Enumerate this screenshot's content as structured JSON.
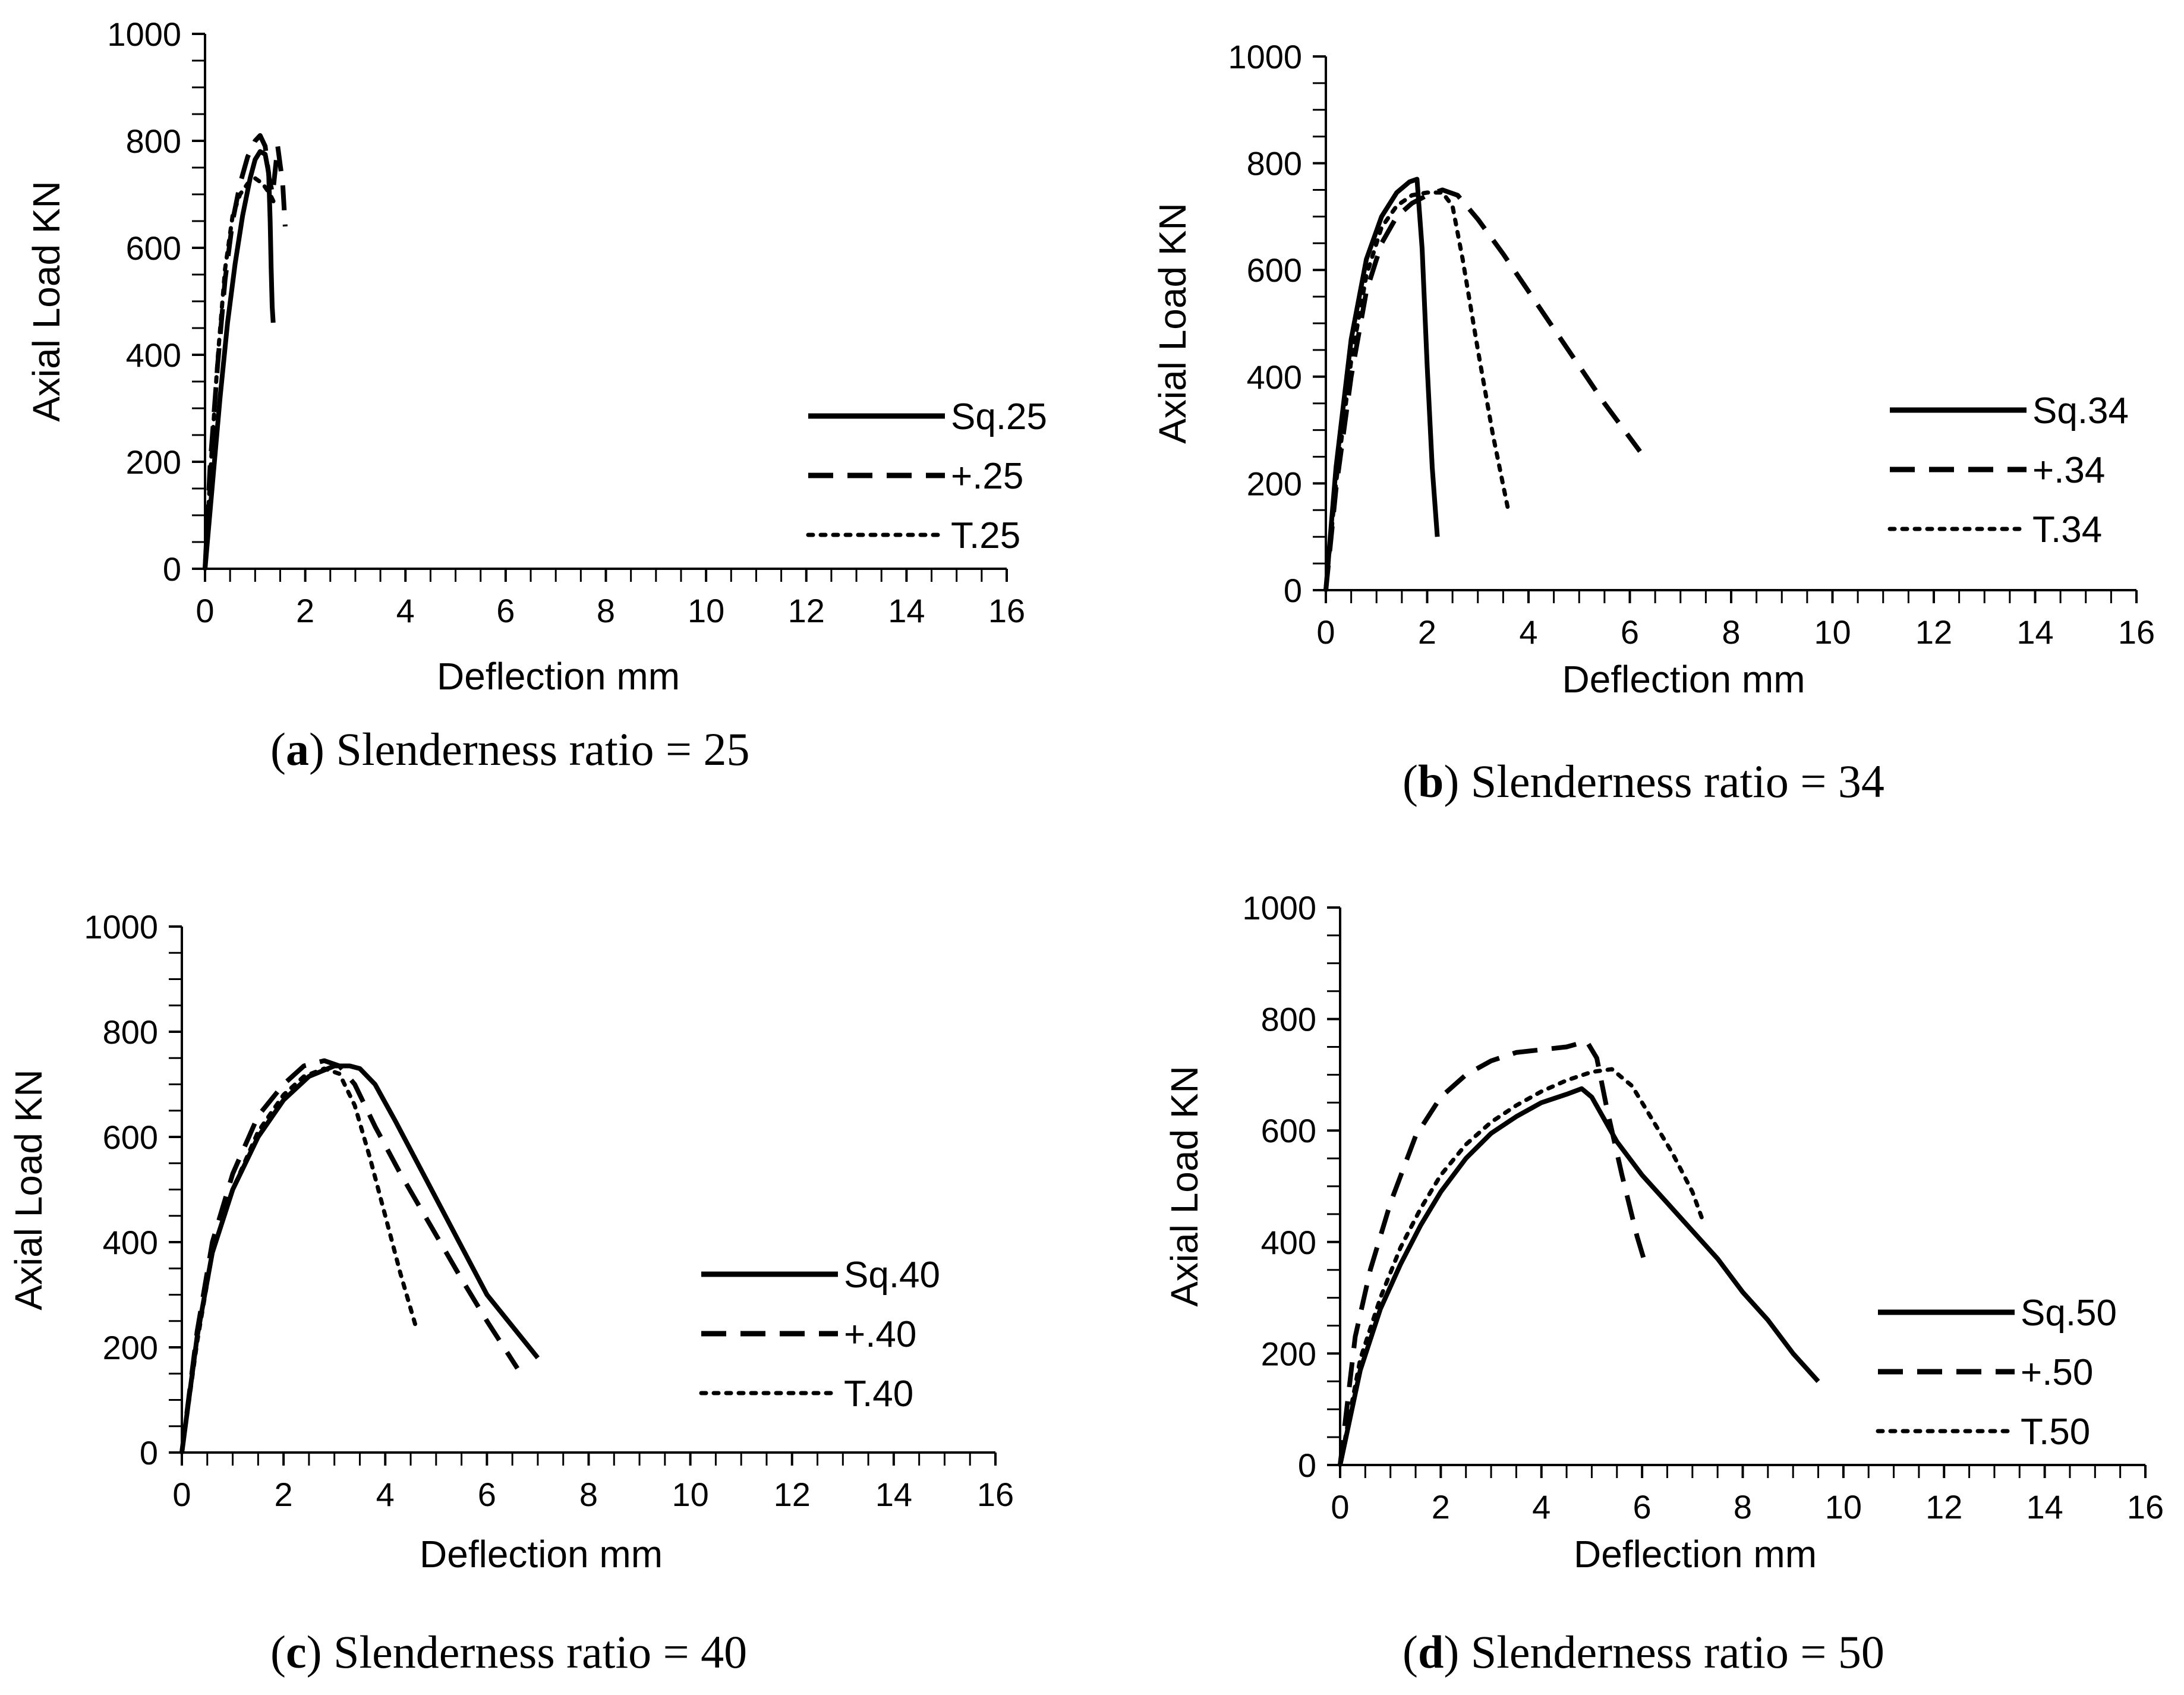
{
  "figure": {
    "colors": {
      "ink": "#000000",
      "background": "#ffffff"
    },
    "chart_data": [
      {
        "type": "line",
        "caption": {
          "open": "(",
          "letter": "a",
          "text": ") Slenderness ratio = 25"
        },
        "xlabel": "Deflection mm",
        "ylabel": "Axial Load KN",
        "xlim": [
          0,
          16
        ],
        "ylim": [
          0,
          1000
        ],
        "xticks": [
          0,
          2,
          4,
          6,
          8,
          10,
          12,
          14,
          16
        ],
        "yticks": [
          0,
          200,
          400,
          600,
          800,
          1000
        ],
        "legend_position": "right",
        "series": [
          {
            "name": "Sq.25",
            "style": "solid",
            "x": [
              0,
              0.15,
              0.3,
              0.45,
              0.6,
              0.75,
              0.9,
              1.0,
              1.1,
              1.2,
              1.27,
              1.3,
              1.32,
              1.34,
              1.36
            ],
            "y": [
              0,
              160,
              320,
              460,
              570,
              660,
              730,
              765,
              780,
              775,
              740,
              650,
              560,
              490,
              460
            ]
          },
          {
            "name": "+.25",
            "style": "dashed",
            "x": [
              0,
              0.1,
              0.25,
              0.4,
              0.55,
              0.7,
              0.85,
              1.0,
              1.1,
              1.2,
              1.28,
              1.35,
              1.45,
              1.55,
              1.6
            ],
            "y": [
              0,
              190,
              380,
              540,
              650,
              720,
              770,
              800,
              810,
              790,
              730,
              700,
              790,
              720,
              640
            ]
          },
          {
            "name": "T.25",
            "style": "dotted",
            "x": [
              0,
              0.12,
              0.25,
              0.4,
              0.55,
              0.7,
              0.85,
              1.0,
              1.15,
              1.3,
              1.4
            ],
            "y": [
              0,
              200,
              390,
              560,
              660,
              700,
              720,
              730,
              720,
              700,
              680
            ]
          }
        ]
      },
      {
        "type": "line",
        "caption": {
          "open": "(",
          "letter": "b",
          "text": ") Slenderness ratio = 34"
        },
        "xlabel": "Deflection mm",
        "ylabel": "Axial Load KN",
        "xlim": [
          0,
          16
        ],
        "ylim": [
          0,
          1000
        ],
        "xticks": [
          0,
          2,
          4,
          6,
          8,
          10,
          12,
          14,
          16
        ],
        "yticks": [
          0,
          200,
          400,
          600,
          800,
          1000
        ],
        "legend_position": "right",
        "series": [
          {
            "name": "Sq.34",
            "style": "solid",
            "x": [
              0,
              0.2,
              0.5,
              0.8,
              1.1,
              1.4,
              1.65,
              1.8,
              1.9,
              2.0,
              2.1,
              2.2
            ],
            "y": [
              0,
              230,
              470,
              620,
              700,
              745,
              765,
              770,
              640,
              420,
              230,
              100
            ]
          },
          {
            "name": "+.34",
            "style": "dashed",
            "x": [
              0,
              0.2,
              0.5,
              0.8,
              1.1,
              1.4,
              1.7,
              2.0,
              2.3,
              2.6,
              3.0,
              3.5,
              4.0,
              4.5,
              5.0,
              5.5,
              6.2
            ],
            "y": [
              0,
              190,
              400,
              560,
              650,
              700,
              725,
              740,
              750,
              740,
              695,
              630,
              560,
              490,
              420,
              350,
              260
            ]
          },
          {
            "name": "T.34",
            "style": "dotted",
            "x": [
              0,
              0.2,
              0.5,
              0.8,
              1.1,
              1.4,
              1.7,
              2.0,
              2.3,
              2.5,
              2.7,
              3.0,
              3.3,
              3.6
            ],
            "y": [
              0,
              200,
              430,
              590,
              680,
              720,
              740,
              745,
              745,
              720,
              620,
              450,
              290,
              150
            ]
          }
        ]
      },
      {
        "type": "line",
        "caption": {
          "open": "(",
          "letter": "c",
          "text": ") Slenderness ratio = 40"
        },
        "xlabel": "Deflection mm",
        "ylabel": "Axial Load KN",
        "xlim": [
          0,
          16
        ],
        "ylim": [
          0,
          1000
        ],
        "xticks": [
          0,
          2,
          4,
          6,
          8,
          10,
          12,
          14,
          16
        ],
        "yticks": [
          0,
          200,
          400,
          600,
          800,
          1000
        ],
        "legend_position": "right",
        "series": [
          {
            "name": "Sq.40",
            "style": "solid",
            "x": [
              0,
              0.3,
              0.6,
              1.0,
              1.5,
              2.0,
              2.5,
              3.0,
              3.3,
              3.5,
              3.8,
              4.2,
              4.8,
              5.4,
              6.0,
              6.5,
              7.0
            ],
            "y": [
              0,
              220,
              380,
              500,
              600,
              670,
              715,
              735,
              735,
              730,
              700,
              630,
              520,
              410,
              300,
              240,
              180
            ]
          },
          {
            "name": "+.40",
            "style": "dashed",
            "x": [
              0,
              0.3,
              0.6,
              1.0,
              1.5,
              2.0,
              2.4,
              2.8,
              3.1,
              3.4,
              3.8,
              4.3,
              4.9,
              5.5,
              6.0,
              6.6
            ],
            "y": [
              0,
              230,
              400,
              530,
              640,
              700,
              735,
              745,
              735,
              700,
              620,
              530,
              430,
              330,
              250,
              160
            ]
          },
          {
            "name": "T.40",
            "style": "dotted",
            "x": [
              0,
              0.3,
              0.6,
              1.0,
              1.5,
              2.0,
              2.4,
              2.8,
              3.1,
              3.4,
              3.7,
              4.0,
              4.3,
              4.6
            ],
            "y": [
              0,
              210,
              380,
              500,
              610,
              680,
              715,
              730,
              720,
              660,
              560,
              450,
              340,
              240
            ]
          }
        ]
      },
      {
        "type": "line",
        "caption": {
          "open": "(",
          "letter": "d",
          "text": ") Slenderness ratio = 50"
        },
        "xlabel": "Deflection mm",
        "ylabel": "Axial Load KN",
        "xlim": [
          0,
          16
        ],
        "ylim": [
          0,
          1000
        ],
        "xticks": [
          0,
          2,
          4,
          6,
          8,
          10,
          12,
          14,
          16
        ],
        "yticks": [
          0,
          200,
          400,
          600,
          800,
          1000
        ],
        "legend_position": "right",
        "series": [
          {
            "name": "Sq.50",
            "style": "solid",
            "x": [
              0,
              0.4,
              0.8,
              1.2,
              1.6,
              2.0,
              2.5,
              3.0,
              3.5,
              4.0,
              4.5,
              4.8,
              5.0,
              5.5,
              6.0,
              6.5,
              7.0,
              7.5,
              8.0,
              8.5,
              9.0,
              9.5
            ],
            "y": [
              0,
              170,
              280,
              360,
              430,
              490,
              550,
              595,
              625,
              650,
              665,
              675,
              660,
              580,
              520,
              470,
              420,
              370,
              310,
              260,
              200,
              150
            ]
          },
          {
            "name": "+.50",
            "style": "dashed",
            "x": [
              0,
              0.3,
              0.6,
              1.0,
              1.5,
              2.0,
              2.5,
              3.0,
              3.5,
              4.0,
              4.5,
              4.9,
              5.1,
              5.3,
              5.6,
              5.9,
              6.1
            ],
            "y": [
              0,
              230,
              350,
              470,
              590,
              660,
              700,
              725,
              740,
              745,
              750,
              760,
              730,
              640,
              520,
              410,
              350
            ]
          },
          {
            "name": "T.50",
            "style": "dotted",
            "x": [
              0,
              0.4,
              0.8,
              1.2,
              1.6,
              2.0,
              2.5,
              3.0,
              3.5,
              4.0,
              4.5,
              5.0,
              5.4,
              5.8,
              6.2,
              6.6,
              7.0,
              7.2
            ],
            "y": [
              0,
              190,
              300,
              390,
              460,
              520,
              575,
              615,
              645,
              670,
              690,
              705,
              710,
              680,
              620,
              560,
              490,
              440
            ]
          }
        ]
      }
    ]
  }
}
